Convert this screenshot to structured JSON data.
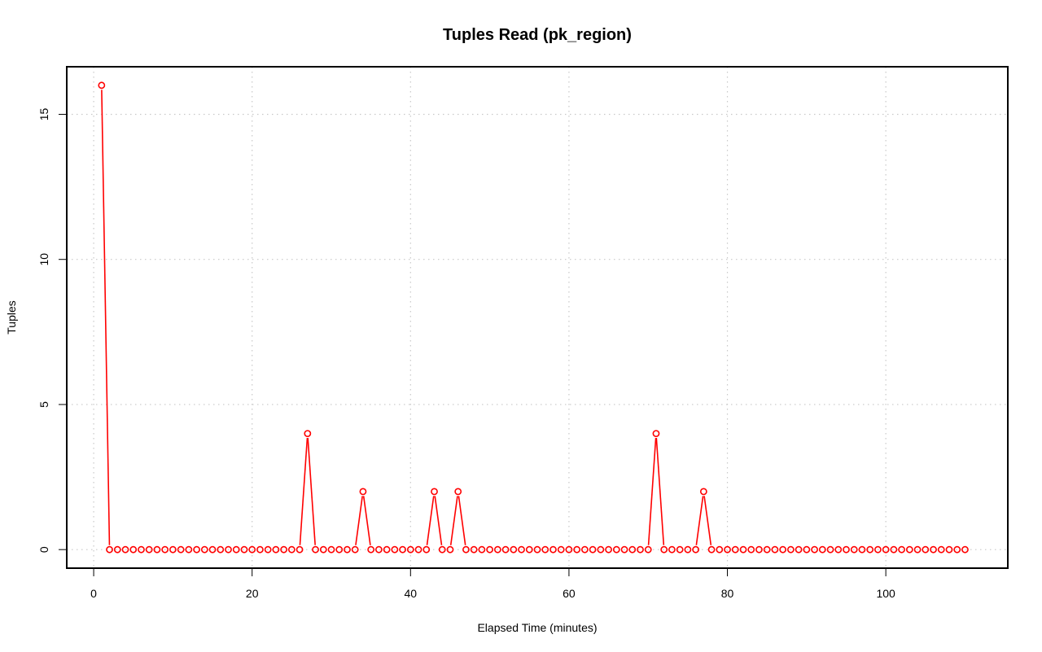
{
  "chart_data": {
    "type": "line",
    "title": "Tuples Read (pk_region)",
    "xlabel": "Elapsed Time (minutes)",
    "ylabel": "Tuples",
    "xlim": [
      -3.4,
      115.4
    ],
    "ylim": [
      -0.64,
      16.64
    ],
    "x_ticks": [
      0,
      20,
      40,
      60,
      80,
      100
    ],
    "y_ticks": [
      0,
      5,
      10,
      15
    ],
    "x_tick_labels": [
      "0",
      "20",
      "40",
      "60",
      "80",
      "100"
    ],
    "y_tick_labels": [
      "0",
      "5",
      "10",
      "15"
    ],
    "grid": true,
    "series": [
      {
        "color": "#ff0000",
        "marker": "open-circle",
        "x_start": 1,
        "x_step": 1,
        "values": [
          16,
          0,
          0,
          0,
          0,
          0,
          0,
          0,
          0,
          0,
          0,
          0,
          0,
          0,
          0,
          0,
          0,
          0,
          0,
          0,
          0,
          0,
          0,
          0,
          0,
          0,
          4,
          0,
          0,
          0,
          0,
          0,
          0,
          2,
          0,
          0,
          0,
          0,
          0,
          0,
          0,
          0,
          2,
          0,
          0,
          2,
          0,
          0,
          0,
          0,
          0,
          0,
          0,
          0,
          0,
          0,
          0,
          0,
          0,
          0,
          0,
          0,
          0,
          0,
          0,
          0,
          0,
          0,
          0,
          0,
          4,
          0,
          0,
          0,
          0,
          0,
          2,
          0,
          0,
          0,
          0,
          0,
          0,
          0,
          0,
          0,
          0,
          0,
          0,
          0,
          0,
          0,
          0,
          0,
          0,
          0,
          0,
          0,
          0,
          0,
          0,
          0,
          0,
          0,
          0,
          0,
          0,
          0,
          0,
          0
        ]
      }
    ]
  }
}
